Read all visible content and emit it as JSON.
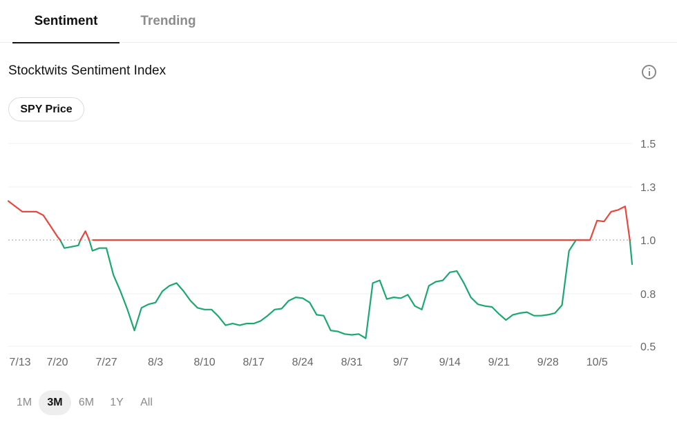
{
  "tabs": [
    {
      "label": "Sentiment",
      "active": true
    },
    {
      "label": "Trending",
      "active": false
    }
  ],
  "title": "Stocktwits Sentiment Index",
  "info_icon": "info-circle-icon",
  "pill": {
    "label": "SPY Price"
  },
  "ranges": [
    {
      "label": "1M",
      "active": false
    },
    {
      "label": "3M",
      "active": true
    },
    {
      "label": "6M",
      "active": false
    },
    {
      "label": "1Y",
      "active": false
    },
    {
      "label": "All",
      "active": false
    }
  ],
  "colors": {
    "above": "#e8473d",
    "below": "#1aa86f",
    "baseline": "#999999",
    "grid": "#efefef",
    "tick": "#666666"
  },
  "chart_data": {
    "type": "line",
    "title": "",
    "xlabel": "",
    "ylabel": "",
    "x_tick_labels": [
      "7/13",
      "7/20",
      "7/27",
      "8/3",
      "8/10",
      "8/17",
      "8/24",
      "8/31",
      "9/7",
      "9/14",
      "9/21",
      "9/28",
      "10/5"
    ],
    "y_tick_labels": [
      "1.5",
      "1.3",
      "1.0",
      "0.8",
      "0.5"
    ],
    "ylim": [
      0.5,
      1.5
    ],
    "baseline": 1.0,
    "grid": true,
    "series": [
      {
        "x": [
          "7/13",
          "7/14",
          "7/15",
          "7/16",
          "7/17",
          "7/18",
          "7/19",
          "7/20",
          "7/21",
          "7/22",
          "7/23",
          "7/24",
          "7/25",
          "7/26",
          "7/27",
          "7/28",
          "7/29",
          "7/30",
          "7/31",
          "8/1",
          "8/2",
          "8/3",
          "8/4",
          "8/5",
          "8/6",
          "8/7",
          "8/8",
          "8/9",
          "8/10",
          "8/11",
          "8/12",
          "8/13",
          "8/14",
          "8/15",
          "8/16",
          "8/17",
          "8/18",
          "8/19",
          "8/20",
          "8/21",
          "8/22",
          "8/23",
          "8/24",
          "8/25",
          "8/26",
          "8/27",
          "8/28",
          "8/29",
          "8/30",
          "8/31",
          "9/1",
          "9/2",
          "9/3",
          "9/4",
          "9/5",
          "9/6",
          "9/7",
          "9/8",
          "9/9",
          "9/10",
          "9/11",
          "9/12",
          "9/13",
          "9/14",
          "9/15",
          "9/16",
          "9/17",
          "9/18",
          "9/19",
          "9/20",
          "9/21",
          "9/22",
          "9/23",
          "9/24",
          "9/25",
          "9/26",
          "9/27",
          "9/28",
          "9/29",
          "9/30",
          "10/1",
          "10/2",
          "10/3",
          "10/4",
          "10/5",
          "10/6",
          "10/7",
          "10/8",
          "10/9",
          "10/10"
        ],
        "values": [
          1.22,
          1.19,
          1.16,
          1.16,
          1.16,
          1.14,
          1.08,
          1.02,
          0.97,
          0.975,
          0.98,
          1.05,
          0.96,
          0.97,
          0.97,
          0.87,
          0.81,
          0.71,
          0.59,
          0.72,
          0.74,
          0.75,
          0.81,
          0.83,
          0.84,
          0.81,
          0.76,
          0.72,
          0.71,
          0.71,
          0.67,
          0.62,
          0.63,
          0.62,
          0.63,
          0.63,
          0.645,
          0.675,
          0.71,
          0.715,
          0.76,
          0.78,
          0.775,
          0.75,
          0.68,
          0.675,
          0.59,
          0.585,
          0.57,
          0.565,
          0.57,
          0.545,
          0.84,
          0.85,
          0.77,
          0.78,
          0.775,
          0.795,
          0.73,
          0.71,
          0.83,
          0.845,
          0.85,
          0.88,
          0.885,
          0.84,
          0.78,
          0.74,
          0.73,
          0.725,
          0.685,
          0.65,
          0.68,
          0.69,
          0.695,
          0.675,
          0.675,
          0.68,
          0.69,
          0.735,
          0.96,
          1.0,
          1.0,
          1.0,
          1.11,
          1.105,
          1.16,
          1.17,
          1.19,
          0.91
        ]
      }
    ]
  }
}
